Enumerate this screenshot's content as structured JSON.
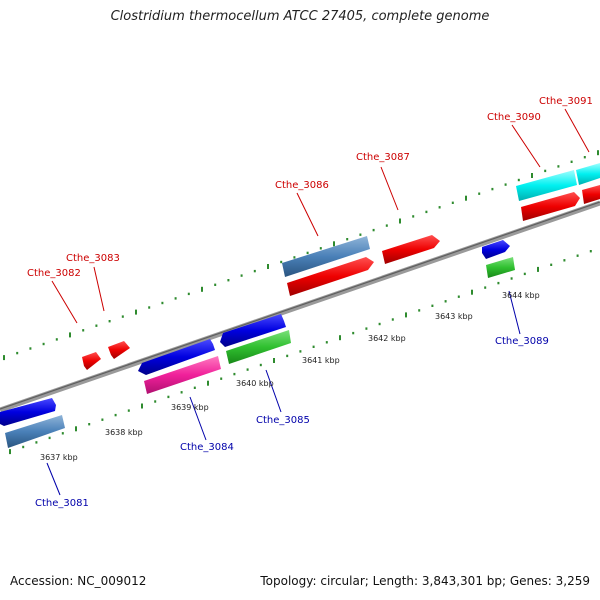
{
  "title": "Clostridium thermocellum ATCC 27405, complete genome",
  "footer": {
    "accession": "Accession: NC_009012",
    "topology": "Topology: circular; Length: 3,843,301 bp; Genes: 3,259"
  },
  "colors": {
    "backbone": "#808080",
    "tick_dots": "#2e8b2e",
    "label_fwd": "#cc0000",
    "label_rev": "#0000aa",
    "tick_text": "#222222"
  },
  "position_labels": [
    "3637 kbp",
    "3638 kbp",
    "3639 kbp",
    "3640 kbp",
    "3641 kbp",
    "3642 kbp",
    "3643 kbp",
    "3644 kbp"
  ],
  "genes": [
    {
      "name": "Cthe_3081",
      "strand": "reverse"
    },
    {
      "name": "Cthe_3082",
      "strand": "forward"
    },
    {
      "name": "Cthe_3083",
      "strand": "forward"
    },
    {
      "name": "Cthe_3084",
      "strand": "reverse"
    },
    {
      "name": "Cthe_3085",
      "strand": "reverse"
    },
    {
      "name": "Cthe_3086",
      "strand": "forward"
    },
    {
      "name": "Cthe_3087",
      "strand": "forward"
    },
    {
      "name": "Cthe_3089",
      "strand": "reverse"
    },
    {
      "name": "Cthe_3090",
      "strand": "forward"
    },
    {
      "name": "Cthe_3091",
      "strand": "forward"
    }
  ]
}
